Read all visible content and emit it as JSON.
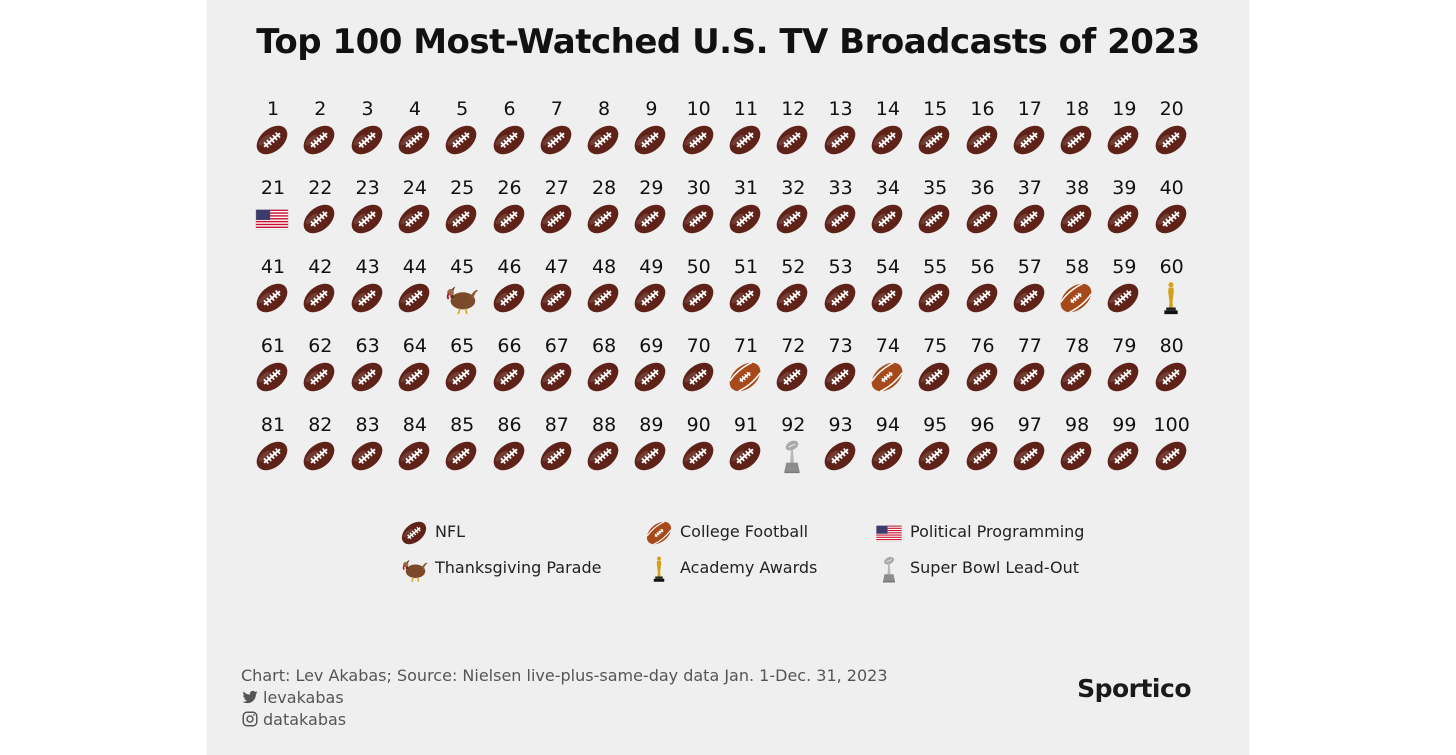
{
  "title": "Top 100 Most-Watched U.S. TV Broadcasts of 2023",
  "chart_data": {
    "type": "table",
    "title": "Top 100 Most-Watched U.S. TV Broadcasts of 2023",
    "columns_per_row": 20,
    "ranks": [
      1,
      2,
      3,
      4,
      5,
      6,
      7,
      8,
      9,
      10,
      11,
      12,
      13,
      14,
      15,
      16,
      17,
      18,
      19,
      20,
      21,
      22,
      23,
      24,
      25,
      26,
      27,
      28,
      29,
      30,
      31,
      32,
      33,
      34,
      35,
      36,
      37,
      38,
      39,
      40,
      41,
      42,
      43,
      44,
      45,
      46,
      47,
      48,
      49,
      50,
      51,
      52,
      53,
      54,
      55,
      56,
      57,
      58,
      59,
      60,
      61,
      62,
      63,
      64,
      65,
      66,
      67,
      68,
      69,
      70,
      71,
      72,
      73,
      74,
      75,
      76,
      77,
      78,
      79,
      80,
      81,
      82,
      83,
      84,
      85,
      86,
      87,
      88,
      89,
      90,
      91,
      92,
      93,
      94,
      95,
      96,
      97,
      98,
      99,
      100
    ],
    "exceptions": {
      "21": "politics",
      "45": "parade",
      "58": "college",
      "60": "oscar",
      "71": "college",
      "74": "college",
      "92": "trophy"
    },
    "default_category": "nfl",
    "legend": [
      {
        "key": "nfl",
        "label": "NFL",
        "icon": "american-football-icon"
      },
      {
        "key": "college",
        "label": "College Football",
        "icon": "college-football-icon"
      },
      {
        "key": "politics",
        "label": "Political Programming",
        "icon": "us-flag-icon"
      },
      {
        "key": "parade",
        "label": "Thanksgiving Parade",
        "icon": "turkey-icon"
      },
      {
        "key": "oscar",
        "label": "Academy Awards",
        "icon": "oscar-statue-icon"
      },
      {
        "key": "trophy",
        "label": "Super Bowl Lead-Out",
        "icon": "lombardi-trophy-icon"
      }
    ],
    "legend_placement": "bottom-center",
    "colors": {
      "nfl": "#5e2218",
      "college": "#a64a1b",
      "flag_red": "#c8102e",
      "flag_blue": "#3c3b6e",
      "gold": "#d4a017",
      "silver": "#a9a9a9"
    }
  },
  "footer": {
    "source": "Chart: Lev Akabas; Source: Nielsen live-plus-same-day data Jan. 1-Dec. 31, 2023",
    "twitter": "levakabas",
    "instagram": "datakabas"
  },
  "brand": "Sportico"
}
